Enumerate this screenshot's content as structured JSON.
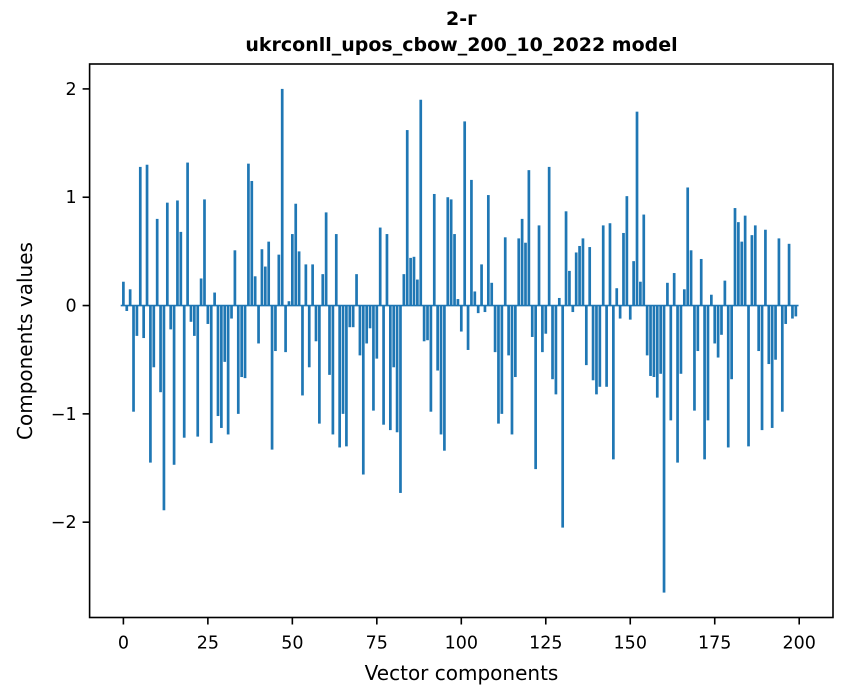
{
  "chart_data": {
    "type": "bar",
    "title": "2-г\nukrconll_upos_cbow_200_10_2022 model",
    "title_lines": [
      "2-г",
      "ukrconll_upos_cbow_200_10_2022 model"
    ],
    "xlabel": "Vector components",
    "ylabel": "Components values",
    "x_ticks": [
      0,
      25,
      50,
      75,
      100,
      125,
      150,
      175,
      200
    ],
    "y_ticks": [
      2,
      1,
      0,
      -1,
      -2
    ],
    "xlim": [
      -10,
      210
    ],
    "ylim": [
      -2.88,
      2.23
    ],
    "grid": false,
    "legend": false,
    "bar_color": "#1f77b4",
    "n_components": 200,
    "x_start_index": 0,
    "values": [
      0.22,
      -0.05,
      0.15,
      -0.98,
      -0.28,
      1.28,
      -0.3,
      1.3,
      -1.45,
      -0.57,
      0.8,
      -0.8,
      -1.89,
      0.95,
      -0.22,
      -1.47,
      0.97,
      0.68,
      -1.22,
      1.32,
      -0.15,
      -0.28,
      -1.21,
      0.25,
      0.98,
      -0.17,
      -1.27,
      0.12,
      -1.02,
      -1.13,
      -0.52,
      -1.19,
      -0.12,
      0.51,
      -1.0,
      -0.66,
      -0.67,
      1.31,
      1.15,
      0.27,
      -0.35,
      0.52,
      0.36,
      0.59,
      -1.33,
      -0.42,
      0.47,
      2.0,
      -0.43,
      0.04,
      0.66,
      0.94,
      0.5,
      -0.83,
      0.38,
      -0.57,
      0.38,
      -0.33,
      -1.09,
      0.29,
      0.86,
      -0.64,
      -1.19,
      0.66,
      -1.31,
      -1.0,
      -1.3,
      -0.2,
      -0.2,
      0.29,
      -0.46,
      -1.56,
      -0.35,
      -0.21,
      -0.97,
      -0.49,
      0.72,
      -1.1,
      0.66,
      -1.15,
      -0.57,
      -1.17,
      -1.73,
      0.29,
      1.62,
      0.44,
      0.45,
      0.24,
      1.9,
      -0.33,
      -0.32,
      -0.98,
      1.03,
      -0.6,
      -1.19,
      -1.34,
      1.0,
      0.98,
      0.66,
      0.06,
      -0.24,
      1.7,
      -0.41,
      1.16,
      0.13,
      -0.07,
      0.38,
      -0.06,
      1.02,
      0.21,
      -0.43,
      -1.09,
      -1.0,
      0.63,
      -0.46,
      -1.19,
      -0.66,
      0.62,
      0.8,
      0.58,
      1.25,
      -0.29,
      -1.51,
      0.74,
      -0.43,
      -0.26,
      1.28,
      -0.68,
      -0.82,
      0.07,
      -2.05,
      0.87,
      0.32,
      -0.06,
      0.49,
      0.55,
      0.62,
      -0.55,
      0.54,
      -0.69,
      -0.82,
      -0.75,
      0.74,
      -0.75,
      0.76,
      -1.42,
      0.16,
      -0.12,
      0.67,
      1.01,
      -0.13,
      0.41,
      1.79,
      0.22,
      0.84,
      -0.46,
      -0.65,
      -0.66,
      -0.85,
      -0.63,
      -2.65,
      0.21,
      -1.06,
      0.3,
      -1.45,
      -0.63,
      0.15,
      1.09,
      0.51,
      -0.97,
      -0.42,
      0.43,
      -1.42,
      -1.06,
      0.1,
      -0.35,
      -0.48,
      -0.27,
      0.23,
      -1.31,
      -0.68,
      0.9,
      0.77,
      0.59,
      0.83,
      -1.3,
      0.65,
      0.74,
      -0.42,
      -1.15,
      0.7,
      -0.54,
      -1.13,
      -0.5,
      0.62,
      -0.98,
      -0.17,
      0.57,
      -0.12,
      -0.1
    ],
    "colors": {
      "bar": "#1f77b4",
      "spine": "#000000",
      "text": "#000000",
      "background": "#ffffff"
    }
  }
}
